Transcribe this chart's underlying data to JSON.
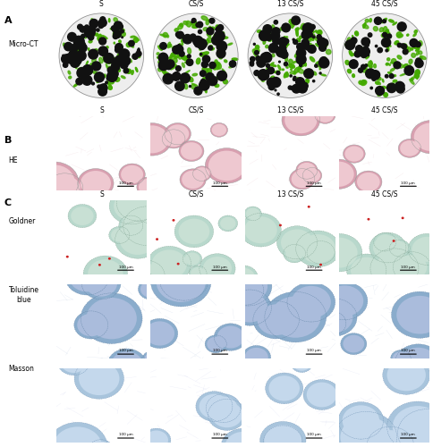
{
  "col_labels": [
    "S",
    "CS/S",
    "13 CS/S",
    "45 CS/S"
  ],
  "background_color": "#ffffff",
  "fig_width": 4.85,
  "fig_height": 5.0,
  "micro_ct_bg": "#f0f0f0",
  "micro_ct_green": "#44aa00",
  "micro_ct_black": "#111111",
  "he_bg": "#f5dce0",
  "he_sphere_light": "#eec8d0",
  "he_sphere_dark": "#d8a0b0",
  "he_tissue": "#d09090",
  "goldner_bg": "#e8f0ec",
  "goldner_sphere": "#b8d8cc",
  "goldner_sphere2": "#c8e0d4",
  "toluidine_bg": "#d8e4f4",
  "toluidine_sphere": "#8aaccc",
  "toluidine_sphere2": "#aabcdc",
  "masson_bg": "#dce8f4",
  "masson_sphere": "#a8c4dc",
  "masson_sphere2": "#c4d8ec",
  "height_ratios": [
    2.2,
    1.6,
    1.6,
    1.6,
    1.6
  ],
  "label_fontsize": 5.5,
  "section_fontsize": 8
}
